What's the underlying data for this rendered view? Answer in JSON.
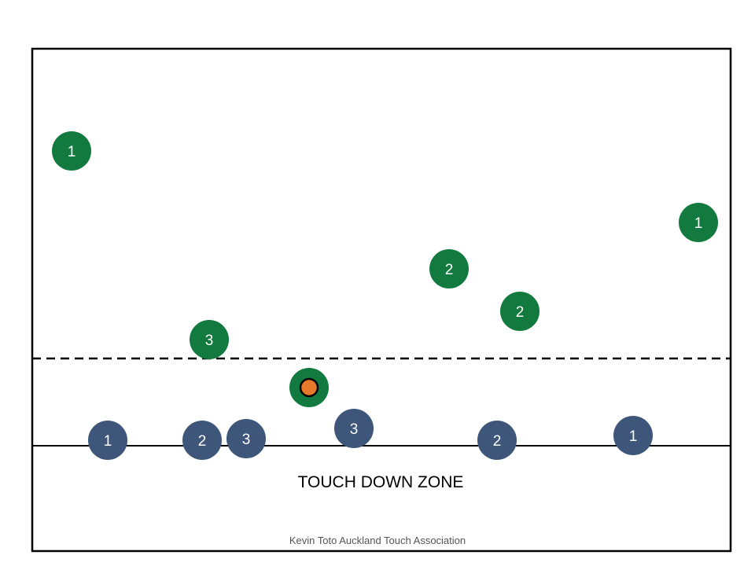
{
  "colors": {
    "attack_team": "#127a3e",
    "defence_team": "#3d5679",
    "ball": "#e8782a",
    "lines": "#000000",
    "background": "#ffffff"
  },
  "field": {
    "zone_label": "TOUCH DOWN ZONE",
    "credit": "Kevin Toto Auckland Touch Association"
  },
  "players": {
    "attack": [
      {
        "number": "1"
      },
      {
        "number": "1"
      },
      {
        "number": "2"
      },
      {
        "number": "2"
      },
      {
        "number": "3"
      },
      {
        "role": "ball-carrier"
      }
    ],
    "defence": [
      {
        "number": "1"
      },
      {
        "number": "2"
      },
      {
        "number": "3"
      },
      {
        "number": "3"
      },
      {
        "number": "2"
      },
      {
        "number": "1"
      }
    ]
  }
}
